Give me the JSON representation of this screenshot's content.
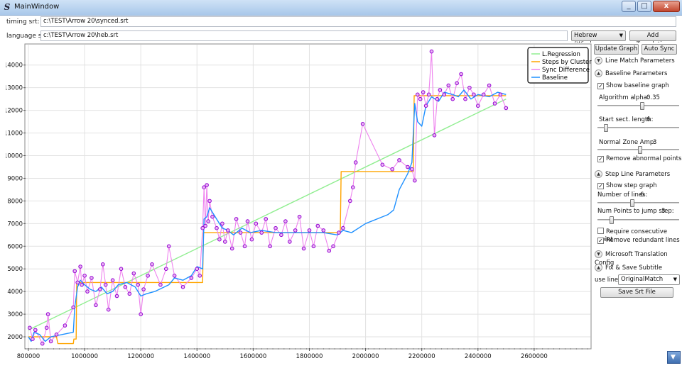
{
  "window": {
    "title": "MainWindow",
    "minimize": "_",
    "maximize": "□",
    "close": "x"
  },
  "timing": {
    "label": "timing srt:",
    "value": "c:\\TEST\\Arrow 20\\synced.srt"
  },
  "language": {
    "label": "language srt:",
    "value": "c:\\TEST\\Arrow 20\\heb.srt",
    "encoding": "Hebrew (Windows",
    "add_translation": "Add Translation"
  },
  "actions": {
    "update_graph": "Update Graph",
    "auto_sync": "Auto Sync"
  },
  "panel": {
    "line_match": "Line Match Parameters",
    "baseline": {
      "header": "Baseline Parameters",
      "show_graph": "Show baseline graph",
      "alpha_label": "Algorithm alpha:",
      "alpha_value": "0.35",
      "alpha_frac": 0.55,
      "start_label": "Start sect. length:",
      "start_value": "6",
      "start_frac": 0.08,
      "amp_label": "Normal Zone Amp:",
      "amp_value": "3",
      "amp_frac": 0.52,
      "remove_abnormal": "Remove abnormal points"
    },
    "step": {
      "header": "Step Line Parameters",
      "show_graph": "Show step graph",
      "lines_label": "Number of lines:",
      "lines_value": "6",
      "lines_frac": 0.42,
      "jump_label": "Num Points to jump step:",
      "jump_value": "3",
      "jump_frac": 0.16,
      "consecutive": "Require consecutive point",
      "redundant": "Remove redundant lines"
    },
    "ms_translation": "Microsoft Translation Config",
    "fix_save": {
      "header": "Fix & Save Subtitle",
      "use_line_label": "use line:",
      "use_line_value": "OriginalMatch",
      "save_button": "Save Srt File"
    },
    "check": "✓",
    "chev_up": "▲",
    "chev_down": "▼"
  },
  "scroll": {
    "glyph": "▼"
  },
  "chart_data": {
    "type": "line",
    "xlim": [
      790000,
      2800000
    ],
    "ylim": [
      1500,
      14900
    ],
    "x_ticks": [
      800000,
      1000000,
      1200000,
      1400000,
      1600000,
      1800000,
      2000000,
      2200000,
      2400000,
      2600000
    ],
    "x_tick_labels": [
      "800000",
      "1000000",
      "1200000",
      "1400000",
      "1600000",
      "1800000",
      "2000000",
      "2200000",
      "2400000",
      "2600000"
    ],
    "y_ticks": [
      2000,
      3000,
      4000,
      5000,
      6000,
      7000,
      8000,
      9000,
      10000,
      11000,
      12000,
      13000,
      14000
    ],
    "grid": true,
    "legend_position": "top-right",
    "colors": {
      "regression": "#90ee90",
      "steps": "#ffa500",
      "sync": "#ee82ee",
      "baseline": "#1e90ff",
      "points": "#9400d3"
    },
    "series": [
      {
        "name": "L.Regression",
        "key": "regression",
        "points": [
          [
            800000,
            2300
          ],
          [
            2500000,
            12500
          ]
        ]
      },
      {
        "name": "Steps by Clustering",
        "key": "steps",
        "points": [
          [
            800000,
            2000
          ],
          [
            900000,
            2000
          ],
          [
            905000,
            1700
          ],
          [
            960000,
            1700
          ],
          [
            962000,
            1900
          ],
          [
            970000,
            1900
          ],
          [
            972000,
            4400
          ],
          [
            1420000,
            4400
          ],
          [
            1423000,
            6600
          ],
          [
            1910000,
            6600
          ],
          [
            1913000,
            9300
          ],
          [
            2170000,
            9300
          ],
          [
            2173000,
            12650
          ],
          [
            2500000,
            12650
          ]
        ]
      },
      {
        "name": "Sync Difference",
        "key": "sync",
        "points": [
          [
            805000,
            2400
          ],
          [
            815000,
            1900
          ],
          [
            825000,
            2300
          ],
          [
            850000,
            1700
          ],
          [
            865000,
            2400
          ],
          [
            870000,
            3000
          ],
          [
            880000,
            1800
          ],
          [
            900000,
            2100
          ],
          [
            930000,
            2500
          ],
          [
            960000,
            3300
          ],
          [
            965000,
            4900
          ],
          [
            975000,
            4400
          ],
          [
            985000,
            5100
          ],
          [
            990000,
            4300
          ],
          [
            1000000,
            4700
          ],
          [
            1010000,
            4000
          ],
          [
            1025000,
            4600
          ],
          [
            1040000,
            3400
          ],
          [
            1055000,
            4100
          ],
          [
            1065000,
            5200
          ],
          [
            1075000,
            4300
          ],
          [
            1085000,
            3200
          ],
          [
            1100000,
            4500
          ],
          [
            1115000,
            3800
          ],
          [
            1130000,
            5000
          ],
          [
            1145000,
            4200
          ],
          [
            1160000,
            3900
          ],
          [
            1175000,
            4800
          ],
          [
            1190000,
            4300
          ],
          [
            1200000,
            3000
          ],
          [
            1210000,
            4100
          ],
          [
            1225000,
            4700
          ],
          [
            1240000,
            5200
          ],
          [
            1270000,
            4300
          ],
          [
            1290000,
            5000
          ],
          [
            1300000,
            6000
          ],
          [
            1320000,
            4700
          ],
          [
            1350000,
            4200
          ],
          [
            1380000,
            4600
          ],
          [
            1400000,
            5000
          ],
          [
            1410000,
            4700
          ],
          [
            1420000,
            6800
          ],
          [
            1425000,
            8600
          ],
          [
            1430000,
            6900
          ],
          [
            1435000,
            8700
          ],
          [
            1440000,
            7100
          ],
          [
            1445000,
            8000
          ],
          [
            1455000,
            7300
          ],
          [
            1470000,
            6800
          ],
          [
            1480000,
            6300
          ],
          [
            1490000,
            7000
          ],
          [
            1500000,
            6200
          ],
          [
            1510000,
            6700
          ],
          [
            1525000,
            5900
          ],
          [
            1540000,
            7200
          ],
          [
            1555000,
            6600
          ],
          [
            1570000,
            6000
          ],
          [
            1580000,
            7100
          ],
          [
            1595000,
            6300
          ],
          [
            1610000,
            7000
          ],
          [
            1630000,
            6600
          ],
          [
            1645000,
            7200
          ],
          [
            1660000,
            6000
          ],
          [
            1680000,
            6800
          ],
          [
            1700000,
            6500
          ],
          [
            1715000,
            7100
          ],
          [
            1730000,
            6200
          ],
          [
            1750000,
            6700
          ],
          [
            1765000,
            7300
          ],
          [
            1780000,
            5900
          ],
          [
            1800000,
            6700
          ],
          [
            1815000,
            6000
          ],
          [
            1830000,
            6900
          ],
          [
            1850000,
            6700
          ],
          [
            1870000,
            5800
          ],
          [
            1885000,
            6000
          ],
          [
            1905000,
            6600
          ],
          [
            1920000,
            6800
          ],
          [
            1945000,
            8000
          ],
          [
            1955000,
            8600
          ],
          [
            1965000,
            9700
          ],
          [
            1990000,
            11400
          ],
          [
            2060000,
            9600
          ],
          [
            2095000,
            9400
          ],
          [
            2120000,
            9800
          ],
          [
            2150000,
            9500
          ],
          [
            2165000,
            9400
          ],
          [
            2175000,
            8900
          ],
          [
            2185000,
            12700
          ],
          [
            2195000,
            12500
          ],
          [
            2205000,
            12800
          ],
          [
            2215000,
            12200
          ],
          [
            2225000,
            12700
          ],
          [
            2235000,
            14600
          ],
          [
            2245000,
            10900
          ],
          [
            2255000,
            12500
          ],
          [
            2265000,
            12900
          ],
          [
            2280000,
            12700
          ],
          [
            2295000,
            13100
          ],
          [
            2310000,
            12500
          ],
          [
            2325000,
            13200
          ],
          [
            2340000,
            13600
          ],
          [
            2355000,
            12500
          ],
          [
            2370000,
            13000
          ],
          [
            2385000,
            12700
          ],
          [
            2400000,
            12200
          ],
          [
            2420000,
            12700
          ],
          [
            2440000,
            13100
          ],
          [
            2460000,
            12300
          ],
          [
            2480000,
            12700
          ],
          [
            2500000,
            12100
          ]
        ]
      },
      {
        "name": "Baseline",
        "key": "baseline",
        "points": [
          [
            800000,
            2000
          ],
          [
            810000,
            1800
          ],
          [
            820000,
            2200
          ],
          [
            840000,
            2100
          ],
          [
            860000,
            1800
          ],
          [
            880000,
            2000
          ],
          [
            920000,
            2100
          ],
          [
            960000,
            2200
          ],
          [
            965000,
            3300
          ],
          [
            975000,
            4200
          ],
          [
            985000,
            4500
          ],
          [
            1000000,
            4300
          ],
          [
            1020000,
            4100
          ],
          [
            1040000,
            4000
          ],
          [
            1060000,
            4200
          ],
          [
            1080000,
            3900
          ],
          [
            1100000,
            4000
          ],
          [
            1120000,
            4300
          ],
          [
            1150000,
            4400
          ],
          [
            1180000,
            4200
          ],
          [
            1200000,
            3800
          ],
          [
            1220000,
            3900
          ],
          [
            1250000,
            4000
          ],
          [
            1300000,
            4300
          ],
          [
            1320000,
            4600
          ],
          [
            1350000,
            4500
          ],
          [
            1380000,
            4700
          ],
          [
            1400000,
            5100
          ],
          [
            1420000,
            5000
          ],
          [
            1425000,
            7200
          ],
          [
            1435000,
            7300
          ],
          [
            1445000,
            7700
          ],
          [
            1460000,
            7400
          ],
          [
            1475000,
            7100
          ],
          [
            1490000,
            6800
          ],
          [
            1510000,
            6700
          ],
          [
            1530000,
            6500
          ],
          [
            1560000,
            6800
          ],
          [
            1590000,
            6600
          ],
          [
            1630000,
            6700
          ],
          [
            1680000,
            6600
          ],
          [
            1730000,
            6600
          ],
          [
            1800000,
            6600
          ],
          [
            1850000,
            6600
          ],
          [
            1900000,
            6500
          ],
          [
            1920000,
            6700
          ],
          [
            1950000,
            6600
          ],
          [
            2000000,
            7000
          ],
          [
            2080000,
            7400
          ],
          [
            2100000,
            7600
          ],
          [
            2120000,
            8500
          ],
          [
            2150000,
            9200
          ],
          [
            2165000,
            9700
          ],
          [
            2175000,
            12300
          ],
          [
            2185000,
            11500
          ],
          [
            2200000,
            11300
          ],
          [
            2215000,
            12200
          ],
          [
            2235000,
            12600
          ],
          [
            2260000,
            12400
          ],
          [
            2280000,
            12800
          ],
          [
            2310000,
            12700
          ],
          [
            2330000,
            12600
          ],
          [
            2350000,
            12900
          ],
          [
            2375000,
            12500
          ],
          [
            2400000,
            12700
          ],
          [
            2440000,
            12600
          ],
          [
            2470000,
            12800
          ],
          [
            2500000,
            12700
          ]
        ]
      }
    ]
  }
}
